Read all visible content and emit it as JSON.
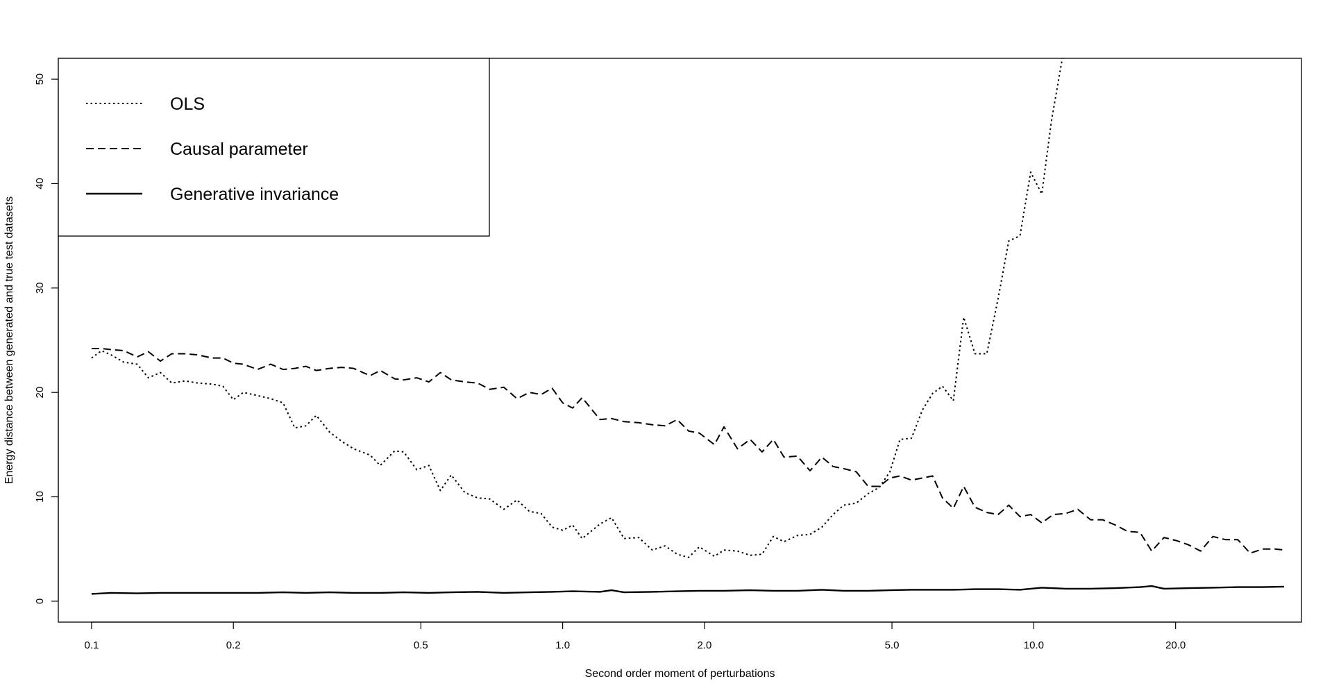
{
  "chart_data": {
    "type": "line",
    "xlabel": "Second order moment of perturbations",
    "ylabel": "Energy distance between generated and true test datasets",
    "x_scale": "log",
    "xlim": [
      0.085,
      37
    ],
    "ylim": [
      -2,
      52
    ],
    "x_ticks": [
      0.1,
      0.2,
      0.5,
      1.0,
      2.0,
      5.0,
      10.0,
      20.0
    ],
    "x_tick_labels": [
      "0.1",
      "0.2",
      "0.5",
      "1.0",
      "2.0",
      "5.0",
      "10.0",
      "20.0"
    ],
    "y_ticks": [
      0,
      10,
      20,
      30,
      40,
      50
    ],
    "y_tick_labels": [
      "0",
      "10",
      "20",
      "30",
      "40",
      "50"
    ],
    "grid": false,
    "legend_position": "top-left",
    "series": [
      {
        "name": "OLS",
        "line_style": "dotted",
        "color": "#000000",
        "points": [
          [
            0.1,
            23.3
          ],
          [
            0.105,
            24.0
          ],
          [
            0.11,
            23.6
          ],
          [
            0.117,
            22.9
          ],
          [
            0.125,
            22.7
          ],
          [
            0.132,
            21.4
          ],
          [
            0.14,
            21.9
          ],
          [
            0.148,
            20.9
          ],
          [
            0.158,
            21.1
          ],
          [
            0.168,
            20.9
          ],
          [
            0.18,
            20.8
          ],
          [
            0.19,
            20.6
          ],
          [
            0.2,
            19.3
          ],
          [
            0.21,
            20.0
          ],
          [
            0.225,
            19.7
          ],
          [
            0.24,
            19.4
          ],
          [
            0.255,
            19.0
          ],
          [
            0.27,
            16.6
          ],
          [
            0.285,
            16.8
          ],
          [
            0.3,
            17.8
          ],
          [
            0.32,
            16.2
          ],
          [
            0.34,
            15.3
          ],
          [
            0.36,
            14.6
          ],
          [
            0.39,
            14.0
          ],
          [
            0.41,
            13.0
          ],
          [
            0.44,
            14.4
          ],
          [
            0.46,
            14.3
          ],
          [
            0.49,
            12.6
          ],
          [
            0.52,
            13.0
          ],
          [
            0.55,
            10.6
          ],
          [
            0.58,
            12.1
          ],
          [
            0.62,
            10.4
          ],
          [
            0.66,
            9.9
          ],
          [
            0.7,
            9.8
          ],
          [
            0.75,
            8.8
          ],
          [
            0.8,
            9.7
          ],
          [
            0.85,
            8.6
          ],
          [
            0.9,
            8.4
          ],
          [
            0.95,
            7.1
          ],
          [
            1.0,
            6.8
          ],
          [
            1.05,
            7.3
          ],
          [
            1.1,
            6.0
          ],
          [
            1.2,
            7.4
          ],
          [
            1.27,
            8.0
          ],
          [
            1.35,
            6.0
          ],
          [
            1.45,
            6.1
          ],
          [
            1.55,
            4.9
          ],
          [
            1.65,
            5.3
          ],
          [
            1.75,
            4.5
          ],
          [
            1.85,
            4.2
          ],
          [
            1.95,
            5.2
          ],
          [
            2.1,
            4.3
          ],
          [
            2.2,
            4.9
          ],
          [
            2.35,
            4.8
          ],
          [
            2.5,
            4.4
          ],
          [
            2.65,
            4.5
          ],
          [
            2.8,
            6.2
          ],
          [
            2.95,
            5.7
          ],
          [
            3.15,
            6.3
          ],
          [
            3.35,
            6.4
          ],
          [
            3.55,
            7.1
          ],
          [
            3.75,
            8.3
          ],
          [
            3.95,
            9.2
          ],
          [
            4.2,
            9.4
          ],
          [
            4.45,
            10.3
          ],
          [
            4.7,
            10.9
          ],
          [
            4.95,
            12.4
          ],
          [
            5.2,
            15.5
          ],
          [
            5.5,
            15.6
          ],
          [
            5.8,
            18.3
          ],
          [
            6.1,
            19.9
          ],
          [
            6.4,
            20.6
          ],
          [
            6.75,
            19.2
          ],
          [
            7.1,
            27.2
          ],
          [
            7.5,
            23.7
          ],
          [
            7.95,
            23.7
          ],
          [
            8.4,
            29.0
          ],
          [
            8.85,
            34.5
          ],
          [
            9.35,
            35.0
          ],
          [
            9.85,
            41.1
          ],
          [
            10.4,
            39.0
          ],
          [
            10.9,
            46.0
          ],
          [
            11.5,
            52.0
          ]
        ]
      },
      {
        "name": "Causal parameter",
        "line_style": "dashed",
        "color": "#000000",
        "points": [
          [
            0.1,
            24.2
          ],
          [
            0.105,
            24.2
          ],
          [
            0.11,
            24.1
          ],
          [
            0.117,
            24.0
          ],
          [
            0.125,
            23.4
          ],
          [
            0.132,
            23.9
          ],
          [
            0.14,
            23.0
          ],
          [
            0.148,
            23.7
          ],
          [
            0.158,
            23.7
          ],
          [
            0.168,
            23.6
          ],
          [
            0.18,
            23.3
          ],
          [
            0.19,
            23.3
          ],
          [
            0.2,
            22.8
          ],
          [
            0.21,
            22.7
          ],
          [
            0.225,
            22.2
          ],
          [
            0.24,
            22.7
          ],
          [
            0.255,
            22.2
          ],
          [
            0.27,
            22.3
          ],
          [
            0.285,
            22.5
          ],
          [
            0.3,
            22.1
          ],
          [
            0.32,
            22.3
          ],
          [
            0.34,
            22.4
          ],
          [
            0.36,
            22.3
          ],
          [
            0.39,
            21.6
          ],
          [
            0.41,
            22.1
          ],
          [
            0.44,
            21.3
          ],
          [
            0.46,
            21.2
          ],
          [
            0.49,
            21.4
          ],
          [
            0.52,
            21.0
          ],
          [
            0.55,
            21.9
          ],
          [
            0.58,
            21.2
          ],
          [
            0.62,
            21.0
          ],
          [
            0.66,
            20.9
          ],
          [
            0.7,
            20.3
          ],
          [
            0.75,
            20.5
          ],
          [
            0.8,
            19.4
          ],
          [
            0.85,
            20.0
          ],
          [
            0.9,
            19.8
          ],
          [
            0.95,
            20.4
          ],
          [
            1.0,
            19.0
          ],
          [
            1.05,
            18.5
          ],
          [
            1.1,
            19.5
          ],
          [
            1.2,
            17.4
          ],
          [
            1.27,
            17.5
          ],
          [
            1.35,
            17.2
          ],
          [
            1.45,
            17.1
          ],
          [
            1.55,
            16.9
          ],
          [
            1.65,
            16.8
          ],
          [
            1.75,
            17.4
          ],
          [
            1.85,
            16.3
          ],
          [
            1.95,
            16.1
          ],
          [
            2.1,
            15.0
          ],
          [
            2.2,
            16.7
          ],
          [
            2.35,
            14.6
          ],
          [
            2.5,
            15.5
          ],
          [
            2.65,
            14.3
          ],
          [
            2.8,
            15.5
          ],
          [
            2.95,
            13.8
          ],
          [
            3.15,
            13.9
          ],
          [
            3.35,
            12.5
          ],
          [
            3.55,
            13.8
          ],
          [
            3.75,
            12.9
          ],
          [
            3.95,
            12.7
          ],
          [
            4.2,
            12.4
          ],
          [
            4.45,
            11.0
          ],
          [
            4.7,
            11.0
          ],
          [
            4.95,
            11.8
          ],
          [
            5.2,
            12.0
          ],
          [
            5.5,
            11.6
          ],
          [
            5.8,
            11.8
          ],
          [
            6.1,
            12.0
          ],
          [
            6.4,
            9.9
          ],
          [
            6.75,
            8.9
          ],
          [
            7.1,
            11.0
          ],
          [
            7.5,
            9.0
          ],
          [
            7.95,
            8.5
          ],
          [
            8.4,
            8.3
          ],
          [
            8.85,
            9.2
          ],
          [
            9.35,
            8.1
          ],
          [
            9.85,
            8.3
          ],
          [
            10.4,
            7.5
          ],
          [
            11.0,
            8.3
          ],
          [
            11.7,
            8.4
          ],
          [
            12.4,
            8.8
          ],
          [
            13.2,
            7.8
          ],
          [
            14.0,
            7.8
          ],
          [
            14.9,
            7.3
          ],
          [
            15.8,
            6.7
          ],
          [
            16.8,
            6.6
          ],
          [
            17.8,
            4.8
          ],
          [
            18.9,
            6.1
          ],
          [
            20.1,
            5.8
          ],
          [
            21.3,
            5.4
          ],
          [
            22.6,
            4.8
          ],
          [
            24.0,
            6.2
          ],
          [
            25.5,
            5.9
          ],
          [
            27.1,
            5.9
          ],
          [
            28.8,
            4.6
          ],
          [
            30.6,
            5.0
          ],
          [
            32.5,
            5.0
          ],
          [
            34.0,
            4.9
          ]
        ]
      },
      {
        "name": "Generative invariance",
        "line_style": "solid",
        "color": "#000000",
        "points": [
          [
            0.1,
            0.7
          ],
          [
            0.11,
            0.8
          ],
          [
            0.125,
            0.75
          ],
          [
            0.14,
            0.8
          ],
          [
            0.158,
            0.8
          ],
          [
            0.18,
            0.8
          ],
          [
            0.2,
            0.8
          ],
          [
            0.225,
            0.8
          ],
          [
            0.255,
            0.85
          ],
          [
            0.285,
            0.8
          ],
          [
            0.32,
            0.85
          ],
          [
            0.36,
            0.8
          ],
          [
            0.41,
            0.8
          ],
          [
            0.46,
            0.85
          ],
          [
            0.52,
            0.8
          ],
          [
            0.58,
            0.85
          ],
          [
            0.66,
            0.9
          ],
          [
            0.75,
            0.8
          ],
          [
            0.85,
            0.85
          ],
          [
            0.95,
            0.9
          ],
          [
            1.05,
            0.95
          ],
          [
            1.2,
            0.9
          ],
          [
            1.27,
            1.05
          ],
          [
            1.35,
            0.85
          ],
          [
            1.55,
            0.9
          ],
          [
            1.75,
            0.95
          ],
          [
            1.95,
            1.0
          ],
          [
            2.2,
            1.0
          ],
          [
            2.5,
            1.05
          ],
          [
            2.8,
            1.0
          ],
          [
            3.15,
            1.0
          ],
          [
            3.55,
            1.1
          ],
          [
            3.95,
            1.0
          ],
          [
            4.45,
            1.0
          ],
          [
            4.95,
            1.05
          ],
          [
            5.5,
            1.1
          ],
          [
            6.1,
            1.1
          ],
          [
            6.75,
            1.1
          ],
          [
            7.5,
            1.15
          ],
          [
            8.4,
            1.15
          ],
          [
            9.35,
            1.1
          ],
          [
            10.4,
            1.3
          ],
          [
            11.7,
            1.2
          ],
          [
            13.2,
            1.2
          ],
          [
            14.9,
            1.25
          ],
          [
            16.8,
            1.35
          ],
          [
            17.8,
            1.45
          ],
          [
            18.9,
            1.2
          ],
          [
            21.3,
            1.25
          ],
          [
            24.0,
            1.3
          ],
          [
            27.1,
            1.35
          ],
          [
            30.6,
            1.35
          ],
          [
            34.0,
            1.4
          ]
        ]
      }
    ]
  }
}
